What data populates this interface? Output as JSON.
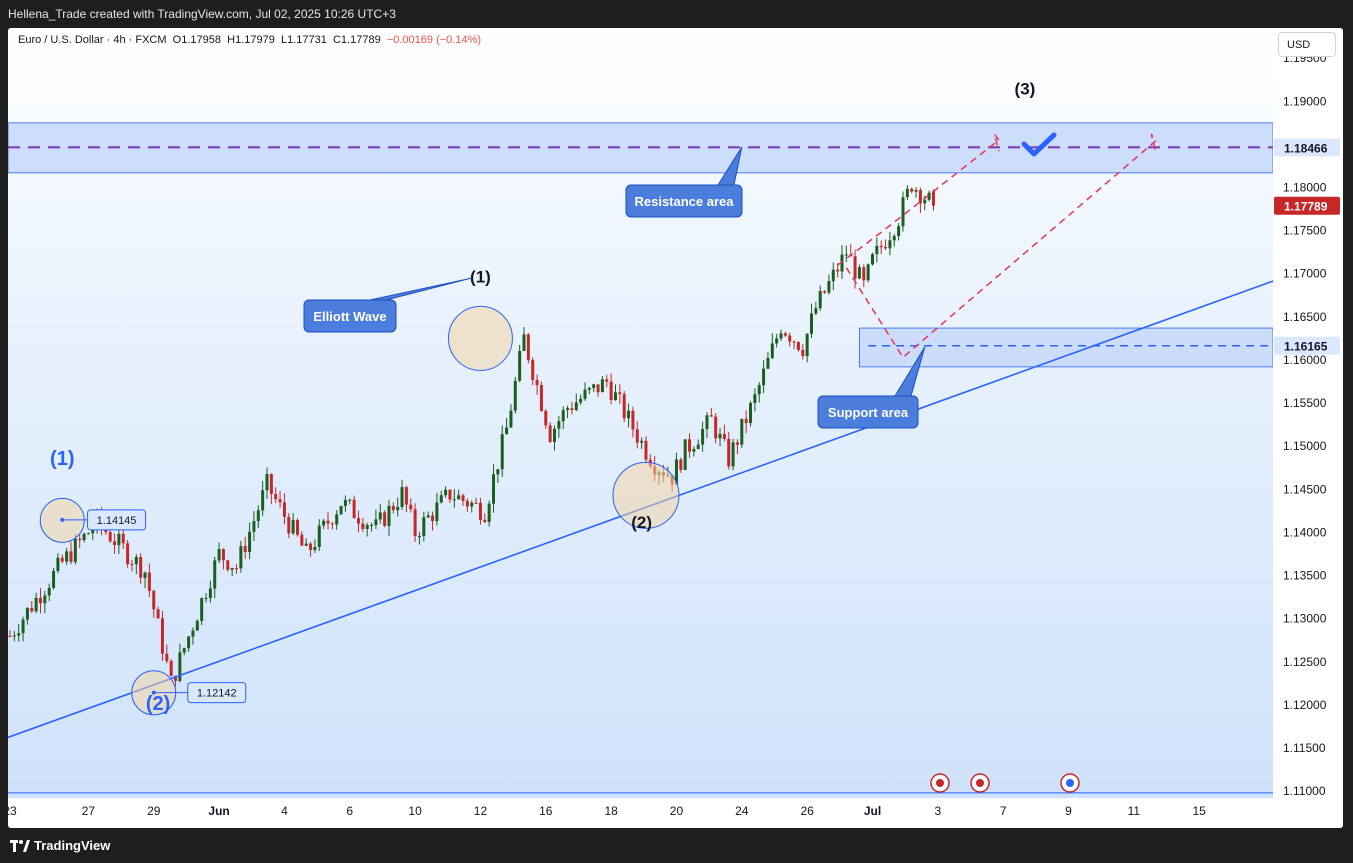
{
  "header": {
    "title": "Hellena_Trade created with TradingView.com, Jul 02, 2025 10:26 UTC+3"
  },
  "legend": {
    "symbol": "Euro / U.S. Dollar · 4h · FXCM",
    "open": "O1.17958",
    "high": "H1.17979",
    "low": "L1.17731",
    "close": "C1.17789",
    "change": "−0.00169 (−0.14%)"
  },
  "currency": "USD",
  "footer": {
    "brand": "TradingView"
  },
  "colors": {
    "bull": "#1b5e20",
    "bear": "#c62828",
    "trendline": "#2962ff",
    "resistance_line": "#7e3fb8",
    "support_line": "#2962ff",
    "zone_fill": "#c6d8fb",
    "path": "#e53950",
    "last_price": "#c62828",
    "callout": "#4a7ddc"
  },
  "chart_data": {
    "type": "candlestick",
    "title": "",
    "xlabel": "",
    "ylabel": "",
    "ylim": [
      1.1092,
      1.1985
    ],
    "yticks": [
      "1.19500",
      "1.19000",
      "1.18500",
      "1.18000",
      "1.17500",
      "1.17000",
      "1.16500",
      "1.16000",
      "1.15500",
      "1.15000",
      "1.14500",
      "1.14000",
      "1.13500",
      "1.13000",
      "1.12500",
      "1.12000",
      "1.11500",
      "1.11000"
    ],
    "ytick_values": [
      1.195,
      1.19,
      1.185,
      1.18,
      1.175,
      1.17,
      1.165,
      1.16,
      1.155,
      1.15,
      1.145,
      1.14,
      1.135,
      1.13,
      1.125,
      1.12,
      1.115,
      1.11
    ],
    "xticks": [
      "23",
      "27",
      "29",
      "Jun",
      "4",
      "6",
      "10",
      "12",
      "16",
      "18",
      "20",
      "24",
      "26",
      "Jul",
      "3",
      "7",
      "9",
      "11",
      "15"
    ],
    "xtick_index": [
      0,
      18,
      33,
      48,
      63,
      78,
      93,
      108,
      123,
      138,
      153,
      168,
      183,
      198,
      213,
      228,
      243,
      258,
      273
    ],
    "candle_count": 213,
    "candles": {
      "anchor_index": [
        0,
        12,
        20,
        31,
        34,
        37,
        48,
        52,
        59,
        68,
        76,
        84,
        90,
        93,
        101,
        109,
        114,
        118,
        124,
        128,
        137,
        146,
        148,
        152,
        155,
        161,
        165,
        171,
        177,
        182,
        185,
        192,
        195,
        196,
        198,
        204,
        207,
        212
      ],
      "anchor_close": [
        1.128,
        1.1365,
        1.1412,
        1.1355,
        1.129,
        1.1225,
        1.1375,
        1.136,
        1.1455,
        1.1375,
        1.1435,
        1.1405,
        1.1445,
        1.14,
        1.1445,
        1.1425,
        1.152,
        1.1625,
        1.1515,
        1.1545,
        1.1575,
        1.1495,
        1.148,
        1.1465,
        1.1495,
        1.153,
        1.1485,
        1.1555,
        1.164,
        1.1615,
        1.166,
        1.1725,
        1.1695,
        1.1685,
        1.1715,
        1.1765,
        1.1805,
        1.1779
      ],
      "last": {
        "open": 1.17958,
        "high": 1.17979,
        "low": 1.17731,
        "close": 1.17789
      }
    },
    "resistance": {
      "value": 1.18466,
      "label": "1.18466",
      "zone": [
        1.1817,
        1.1875
      ]
    },
    "support": {
      "value": 1.16165,
      "label": "1.16165",
      "zone": [
        1.1592,
        1.1637
      ]
    },
    "last_price": {
      "value": 1.17789,
      "label": "1.17789"
    },
    "trendline": [
      {
        "i": -5,
        "v": 1.1154
      },
      {
        "i": 310,
        "v": 1.1728
      }
    ],
    "projection": [
      {
        "i": 192,
        "v": 1.1707
      },
      {
        "i": 205,
        "v": 1.1603
      },
      {
        "i": 263,
        "v": 1.1854
      },
      {
        "i": 262,
        "v": 1.1862
      },
      {
        "i": 263,
        "v": 1.1842
      }
    ],
    "projection_alt": [
      {
        "i": 190,
        "v": 1.171
      },
      {
        "i": 200,
        "v": 1.1748
      },
      {
        "i": 227,
        "v": 1.1855
      },
      {
        "i": 226,
        "v": 1.1862
      },
      {
        "i": 227,
        "v": 1.1842
      }
    ],
    "annotations": [
      {
        "text": "(1)",
        "i": 12,
        "v": 1.1478,
        "color": "#2962ff"
      },
      {
        "text": "(2)",
        "i": 34,
        "v": 1.1194,
        "color": "#2962ff"
      },
      {
        "text": "(1)",
        "i": 108,
        "v": 1.169,
        "color": "#131722"
      },
      {
        "text": "(2)",
        "i": 145,
        "v": 1.1405,
        "color": "#131722"
      },
      {
        "text": "(3)",
        "i": 233,
        "v": 1.1908,
        "color": "#131722"
      }
    ],
    "price_labels": [
      {
        "text": "1.14145",
        "i": 24,
        "v": 1.14145
      },
      {
        "text": "1.12142",
        "i": 47,
        "v": 1.12142
      }
    ],
    "callouts": [
      {
        "text": "Elliott Wave"
      },
      {
        "text": "Resistance area"
      },
      {
        "text": "Support area"
      }
    ]
  }
}
